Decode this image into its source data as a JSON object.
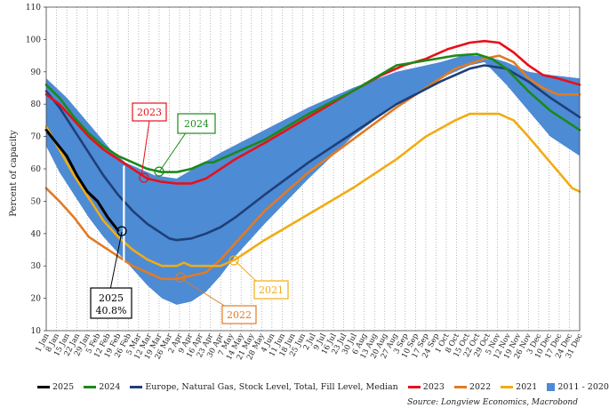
{
  "source": "Source: Longview Economics, Macrobond",
  "colors": {
    "s2025": "#000000",
    "s2024": "#1a8a1a",
    "median": "#1f3f78",
    "s2023": "#e8101a",
    "s2022": "#e07b25",
    "s2021": "#f2ab12",
    "band": "#4d8bd4"
  },
  "legend": [
    {
      "label": "2025",
      "color": "#000000",
      "kind": "line"
    },
    {
      "label": "2024",
      "color": "#1a8a1a",
      "kind": "line"
    },
    {
      "label": "Europe, Natural Gas, Stock Level, Total, Fill Level, Median",
      "color": "#1f3f78",
      "kind": "line"
    },
    {
      "label": "2023",
      "color": "#e8101a",
      "kind": "line"
    },
    {
      "label": "2022",
      "color": "#e07b25",
      "kind": "line"
    },
    {
      "label": "2021",
      "color": "#f2ab12",
      "kind": "line"
    },
    {
      "label": "2011 - 2020",
      "color": "#4d8bd4",
      "kind": "box"
    }
  ],
  "annotations": {
    "a2023": "2023",
    "a2024": "2024",
    "a2025_line1": "2025",
    "a2025_line2": "40.8%",
    "a2022": "2022",
    "a2021": "2021"
  },
  "chart_data": {
    "type": "line",
    "ylabel": "Percent of capacity",
    "ylim": [
      10,
      110
    ],
    "yticks": [
      10,
      20,
      30,
      40,
      50,
      60,
      70,
      80,
      90,
      100,
      110
    ],
    "grid": "vertical dotted",
    "xticks": [
      "1 Jan",
      "8 Jan",
      "15 Jan",
      "22 Jan",
      "29 Jan",
      "5 Feb",
      "12 Feb",
      "19 Feb",
      "26 Feb",
      "5 Mar",
      "12 Mar",
      "19 Mar",
      "26 Mar",
      "2 Apr",
      "9 Apr",
      "16 Apr",
      "23 Apr",
      "30 Apr",
      "7 May",
      "14 May",
      "21 May",
      "28 May",
      "4 Jun",
      "11 Jun",
      "18 Jun",
      "25 Jun",
      "2 Jul",
      "9 Jul",
      "16 Jul",
      "23 Jul",
      "30 Jul",
      "6 Aug",
      "13 Aug",
      "20 Aug",
      "27 Aug",
      "3 Sep",
      "10 Sep",
      "17 Sep",
      "24 Sep",
      "1 Oct",
      "8 Oct",
      "15 Oct",
      "22 Oct",
      "29 Oct",
      "5 Nov",
      "12 Nov",
      "19 Nov",
      "26 Nov",
      "3 Dec",
      "10 Dec",
      "17 Dec",
      "24 Dec",
      "31 Dec"
    ],
    "band": {
      "name": "2011 - 2020",
      "upper": [
        [
          1,
          88
        ],
        [
          15,
          82
        ],
        [
          30,
          74
        ],
        [
          45,
          66
        ],
        [
          55,
          62
        ],
        [
          60,
          61
        ],
        [
          75,
          58
        ],
        [
          90,
          57
        ],
        [
          105,
          61
        ],
        [
          120,
          65
        ],
        [
          150,
          72
        ],
        [
          180,
          79
        ],
        [
          210,
          85
        ],
        [
          240,
          90
        ],
        [
          270,
          93
        ],
        [
          285,
          95
        ],
        [
          300,
          95
        ],
        [
          315,
          93
        ],
        [
          330,
          90
        ],
        [
          345,
          89
        ],
        [
          365,
          88
        ]
      ],
      "lower": [
        [
          1,
          67
        ],
        [
          10,
          59
        ],
        [
          20,
          52
        ],
        [
          30,
          45
        ],
        [
          40,
          39
        ],
        [
          50,
          34
        ],
        [
          60,
          29
        ],
        [
          70,
          24
        ],
        [
          80,
          20
        ],
        [
          90,
          18
        ],
        [
          100,
          19
        ],
        [
          110,
          22
        ],
        [
          120,
          27
        ],
        [
          130,
          33
        ],
        [
          150,
          43
        ],
        [
          180,
          57
        ],
        [
          210,
          70
        ],
        [
          240,
          80
        ],
        [
          270,
          88
        ],
        [
          290,
          92
        ],
        [
          300,
          93
        ],
        [
          315,
          86
        ],
        [
          330,
          78
        ],
        [
          345,
          70
        ],
        [
          365,
          64
        ]
      ]
    },
    "series": [
      {
        "name": "Europe, Natural Gas, Stock Level, Total, Fill Level, Median",
        "points": [
          [
            1,
            84
          ],
          [
            10,
            79
          ],
          [
            20,
            72
          ],
          [
            30,
            65
          ],
          [
            40,
            58
          ],
          [
            50,
            52
          ],
          [
            60,
            47
          ],
          [
            70,
            43
          ],
          [
            80,
            40
          ],
          [
            85,
            38.5
          ],
          [
            90,
            38
          ],
          [
            100,
            38.5
          ],
          [
            110,
            40
          ],
          [
            120,
            42
          ],
          [
            130,
            45
          ],
          [
            150,
            52
          ],
          [
            180,
            62
          ],
          [
            210,
            71
          ],
          [
            240,
            80
          ],
          [
            270,
            87
          ],
          [
            290,
            91
          ],
          [
            300,
            92
          ],
          [
            315,
            91
          ],
          [
            330,
            87
          ],
          [
            345,
            82
          ],
          [
            365,
            76
          ]
        ]
      },
      {
        "name": "2023",
        "points": [
          [
            1,
            83
          ],
          [
            10,
            80
          ],
          [
            20,
            75
          ],
          [
            30,
            70
          ],
          [
            40,
            66
          ],
          [
            50,
            63
          ],
          [
            60,
            60
          ],
          [
            70,
            57
          ],
          [
            80,
            56
          ],
          [
            90,
            55.5
          ],
          [
            100,
            55.5
          ],
          [
            110,
            57
          ],
          [
            120,
            60
          ],
          [
            130,
            63
          ],
          [
            150,
            68
          ],
          [
            180,
            76
          ],
          [
            210,
            84
          ],
          [
            230,
            89
          ],
          [
            245,
            92
          ],
          [
            260,
            94
          ],
          [
            275,
            97
          ],
          [
            290,
            99
          ],
          [
            300,
            99.5
          ],
          [
            310,
            99
          ],
          [
            320,
            96
          ],
          [
            330,
            92
          ],
          [
            340,
            89
          ],
          [
            350,
            88
          ],
          [
            365,
            86
          ]
        ]
      },
      {
        "name": "2024",
        "points": [
          [
            1,
            86
          ],
          [
            10,
            82
          ],
          [
            20,
            76
          ],
          [
            30,
            71
          ],
          [
            40,
            67
          ],
          [
            50,
            64
          ],
          [
            60,
            62
          ],
          [
            70,
            60
          ],
          [
            80,
            59
          ],
          [
            90,
            59
          ],
          [
            100,
            60
          ],
          [
            110,
            62
          ],
          [
            115,
            62
          ],
          [
            120,
            63
          ],
          [
            130,
            65
          ],
          [
            150,
            69
          ],
          [
            180,
            77
          ],
          [
            210,
            84
          ],
          [
            240,
            92
          ],
          [
            260,
            93.5
          ],
          [
            280,
            95
          ],
          [
            295,
            95.5
          ],
          [
            305,
            94
          ],
          [
            315,
            91
          ],
          [
            330,
            84
          ],
          [
            345,
            78
          ],
          [
            365,
            72
          ]
        ]
      },
      {
        "name": "2022",
        "points": [
          [
            1,
            54
          ],
          [
            10,
            50
          ],
          [
            20,
            45
          ],
          [
            30,
            39
          ],
          [
            40,
            36
          ],
          [
            50,
            33
          ],
          [
            60,
            30
          ],
          [
            70,
            28
          ],
          [
            80,
            26
          ],
          [
            90,
            26
          ],
          [
            100,
            27
          ],
          [
            110,
            28
          ],
          [
            120,
            32
          ],
          [
            130,
            37
          ],
          [
            150,
            47
          ],
          [
            180,
            59
          ],
          [
            210,
            69
          ],
          [
            240,
            79
          ],
          [
            260,
            85
          ],
          [
            280,
            91
          ],
          [
            300,
            94
          ],
          [
            310,
            95
          ],
          [
            320,
            93
          ],
          [
            330,
            88
          ],
          [
            340,
            85
          ],
          [
            350,
            83
          ],
          [
            365,
            83
          ]
        ]
      },
      {
        "name": "2021",
        "points": [
          [
            1,
            73
          ],
          [
            10,
            66
          ],
          [
            20,
            58
          ],
          [
            30,
            51
          ],
          [
            40,
            44
          ],
          [
            50,
            39
          ],
          [
            60,
            35
          ],
          [
            70,
            32
          ],
          [
            80,
            30
          ],
          [
            90,
            30
          ],
          [
            95,
            31
          ],
          [
            100,
            30
          ],
          [
            105,
            30
          ],
          [
            110,
            30
          ],
          [
            120,
            30
          ],
          [
            130,
            32
          ],
          [
            150,
            38
          ],
          [
            180,
            46
          ],
          [
            210,
            54
          ],
          [
            240,
            63
          ],
          [
            260,
            70
          ],
          [
            280,
            75
          ],
          [
            290,
            77
          ],
          [
            300,
            77
          ],
          [
            310,
            77
          ],
          [
            320,
            75
          ],
          [
            330,
            70
          ],
          [
            345,
            62
          ],
          [
            360,
            54
          ],
          [
            365,
            53
          ]
        ]
      },
      {
        "name": "2025",
        "points": [
          [
            1,
            72
          ],
          [
            8,
            68
          ],
          [
            15,
            64
          ],
          [
            22,
            58
          ],
          [
            29,
            53
          ],
          [
            36,
            50
          ],
          [
            43,
            45
          ],
          [
            50,
            41
          ]
        ]
      }
    ]
  }
}
